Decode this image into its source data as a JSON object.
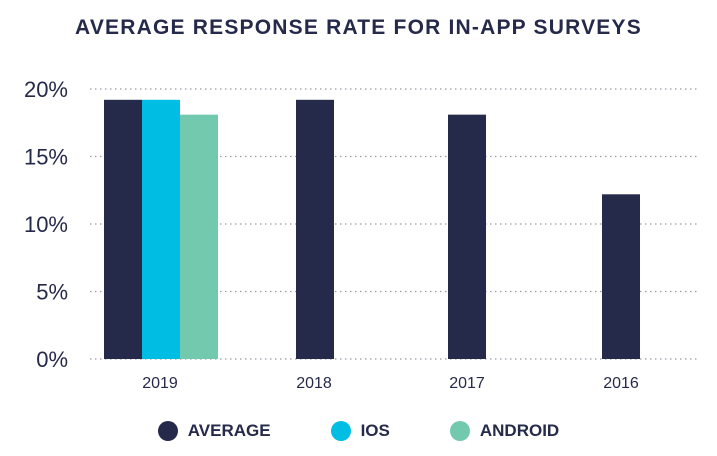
{
  "chart_data": {
    "type": "bar",
    "title": "AVERAGE RESPONSE RATE FOR IN-APP SURVEYS",
    "categories": [
      "2019",
      "2018",
      "2017",
      "2016"
    ],
    "series": [
      {
        "name": "AVERAGE",
        "color": "#252a4a",
        "values": [
          19.2,
          19.2,
          18.1,
          12.2
        ]
      },
      {
        "name": "IOS",
        "color": "#00bde3",
        "values": [
          19.2,
          null,
          null,
          null
        ]
      },
      {
        "name": "ANDROID",
        "color": "#72c9ae",
        "values": [
          18.1,
          null,
          null,
          null
        ]
      }
    ],
    "ylim": [
      0,
      20
    ],
    "yticks": [
      0,
      5,
      10,
      15,
      20
    ],
    "ytick_labels": [
      "0%",
      "5%",
      "10%",
      "15%",
      "20%"
    ],
    "grid": true,
    "legend_position": "bottom"
  }
}
